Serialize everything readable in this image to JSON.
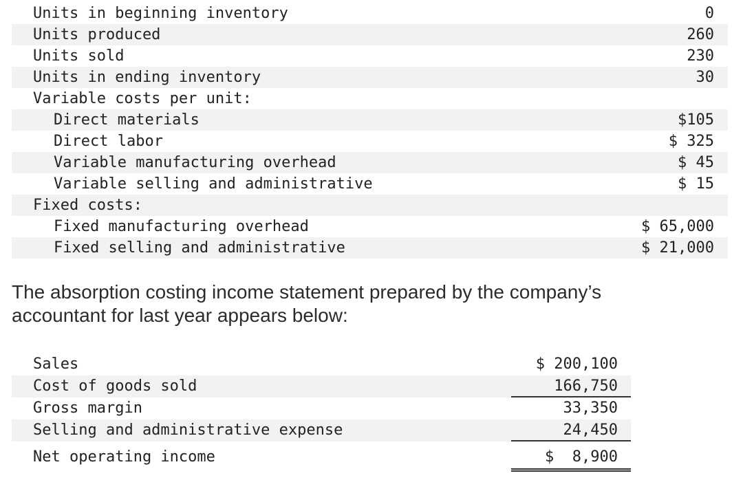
{
  "inventory_table": {
    "rows": [
      {
        "label": "Units in beginning inventory",
        "value": "0"
      },
      {
        "label": "Units produced",
        "value": "260"
      },
      {
        "label": "Units sold",
        "value": "230"
      },
      {
        "label": "Units in ending inventory",
        "value": "30"
      },
      {
        "label": "Variable costs per unit:",
        "value": ""
      },
      {
        "label": "Direct materials",
        "value": "$105"
      },
      {
        "label": "Direct labor",
        "value": "$ 325"
      },
      {
        "label": "Variable manufacturing overhead",
        "value": "$ 45"
      },
      {
        "label": "Variable selling and administrative",
        "value": "$ 15"
      },
      {
        "label": "Fixed costs:",
        "value": ""
      },
      {
        "label": "Fixed manufacturing overhead",
        "value": "$ 65,000"
      },
      {
        "label": "Fixed selling and administrative",
        "value": "$ 21,000"
      }
    ]
  },
  "intro_text": "The absorption costing income statement prepared by the company’s accountant for last year appears below:",
  "income_statement": {
    "rows": [
      {
        "label": "Sales",
        "amount": "$ 200,100"
      },
      {
        "label": "Cost of goods sold",
        "amount": "166,750"
      },
      {
        "label": "Gross margin",
        "amount": "33,350"
      },
      {
        "label": "Selling and administrative expense",
        "amount": "24,450"
      },
      {
        "label": "Net operating income",
        "amount": "$  8,900"
      }
    ]
  }
}
